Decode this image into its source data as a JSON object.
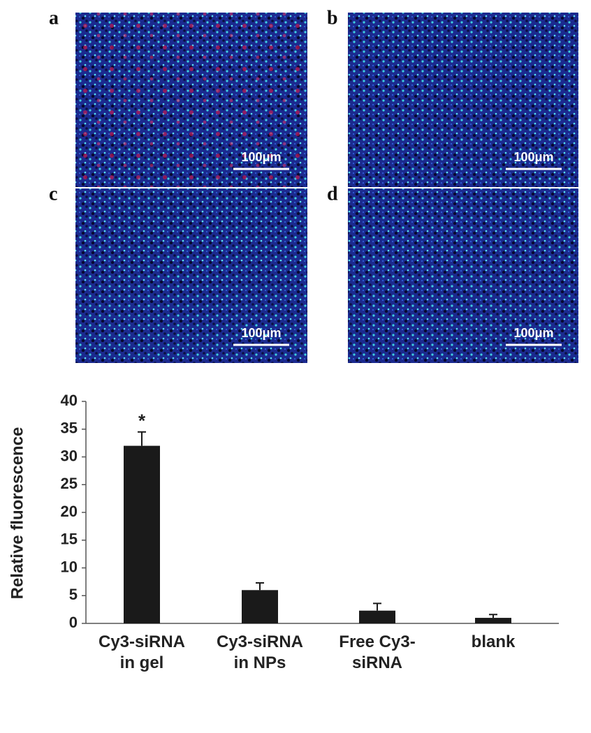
{
  "panels": [
    {
      "label": "a",
      "scale_bar": "100μm"
    },
    {
      "label": "b",
      "scale_bar": "100μm"
    },
    {
      "label": "c",
      "scale_bar": "100μm"
    },
    {
      "label": "d",
      "scale_bar": "100μm"
    }
  ],
  "chart_data": {
    "type": "bar",
    "y_label": "Relative fluorescence",
    "categories": [
      "Cy3-siRNA in gel",
      "Cy3-siRNA in NPs",
      "Free Cy3-siRNA",
      "blank"
    ],
    "values": [
      32,
      6,
      2.3,
      1
    ],
    "errors": [
      2.5,
      1.3,
      1.3,
      0.6
    ],
    "significance": [
      "*",
      null,
      null,
      null
    ],
    "color": "#1a1a1a",
    "ylim": [
      0,
      40
    ],
    "yticks": [
      0,
      5,
      10,
      15,
      20,
      25,
      30,
      35,
      40
    ]
  }
}
